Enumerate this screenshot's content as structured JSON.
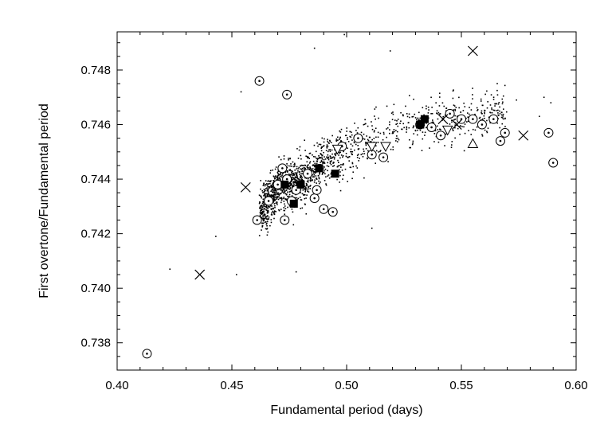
{
  "chart_data": {
    "type": "scatter",
    "title": "",
    "xlabel": "Fundamental period (days)",
    "ylabel": "First overtone/Fundamental period",
    "xlim": [
      0.4,
      0.6
    ],
    "ylim": [
      0.737,
      0.7494
    ],
    "xticks": [
      "0.40",
      "0.45",
      "0.50",
      "0.55",
      "0.60"
    ],
    "yticks": [
      "0.738",
      "0.740",
      "0.742",
      "0.744",
      "0.746",
      "0.748"
    ],
    "grid": false,
    "legend": "none",
    "background_field": {
      "marker": "dot",
      "color": "#000000",
      "approx_count": 1600,
      "trend_points": [
        [
          0.46,
          0.7425
        ],
        [
          0.47,
          0.7437
        ],
        [
          0.48,
          0.744
        ],
        [
          0.49,
          0.7446
        ],
        [
          0.5,
          0.745
        ],
        [
          0.51,
          0.7454
        ],
        [
          0.52,
          0.7457
        ],
        [
          0.53,
          0.746
        ],
        [
          0.54,
          0.7462
        ],
        [
          0.55,
          0.7463
        ],
        [
          0.56,
          0.7463
        ],
        [
          0.565,
          0.7465
        ]
      ],
      "outliers": [
        [
          0.423,
          0.7407
        ],
        [
          0.443,
          0.7419
        ],
        [
          0.452,
          0.7405
        ],
        [
          0.454,
          0.7472
        ],
        [
          0.478,
          0.7406
        ],
        [
          0.486,
          0.7488
        ],
        [
          0.499,
          0.7493
        ],
        [
          0.511,
          0.7422
        ],
        [
          0.519,
          0.7487
        ],
        [
          0.574,
          0.7469
        ],
        [
          0.584,
          0.7463
        ],
        [
          0.586,
          0.747
        ],
        [
          0.589,
          0.7468
        ]
      ]
    },
    "series": [
      {
        "marker": "circle-dot",
        "points": [
          [
            0.413,
            0.7376
          ],
          [
            0.462,
            0.7476
          ],
          [
            0.474,
            0.7471
          ],
          [
            0.461,
            0.7425
          ],
          [
            0.466,
            0.7432
          ],
          [
            0.47,
            0.7438
          ],
          [
            0.472,
            0.7444
          ],
          [
            0.474,
            0.744
          ],
          [
            0.476,
            0.7432
          ],
          [
            0.473,
            0.7425
          ],
          [
            0.478,
            0.7436
          ],
          [
            0.483,
            0.7442
          ],
          [
            0.486,
            0.7433
          ],
          [
            0.487,
            0.7436
          ],
          [
            0.49,
            0.7429
          ],
          [
            0.494,
            0.7428
          ],
          [
            0.498,
            0.7452
          ],
          [
            0.505,
            0.7455
          ],
          [
            0.511,
            0.7449
          ],
          [
            0.516,
            0.7448
          ],
          [
            0.532,
            0.746
          ],
          [
            0.537,
            0.7459
          ],
          [
            0.541,
            0.7456
          ],
          [
            0.545,
            0.7464
          ],
          [
            0.55,
            0.7462
          ],
          [
            0.555,
            0.7462
          ],
          [
            0.559,
            0.746
          ],
          [
            0.564,
            0.7462
          ],
          [
            0.567,
            0.7454
          ],
          [
            0.569,
            0.7457
          ],
          [
            0.588,
            0.7457
          ],
          [
            0.59,
            0.7446
          ]
        ]
      },
      {
        "marker": "square-filled",
        "points": [
          [
            0.473,
            0.7438
          ],
          [
            0.477,
            0.7431
          ],
          [
            0.48,
            0.7438
          ],
          [
            0.488,
            0.7444
          ],
          [
            0.495,
            0.7442
          ],
          [
            0.532,
            0.746
          ],
          [
            0.534,
            0.7462
          ]
        ]
      },
      {
        "marker": "cross",
        "points": [
          [
            0.436,
            0.7405
          ],
          [
            0.456,
            0.7437
          ],
          [
            0.542,
            0.7462
          ],
          [
            0.548,
            0.746
          ],
          [
            0.555,
            0.7487
          ],
          [
            0.577,
            0.7456
          ]
        ]
      },
      {
        "marker": "triangle-up",
        "points": [
          [
            0.555,
            0.7453
          ]
        ]
      },
      {
        "marker": "triangle-down",
        "points": [
          [
            0.496,
            0.7451
          ],
          [
            0.511,
            0.7452
          ],
          [
            0.517,
            0.7452
          ],
          [
            0.544,
            0.7458
          ]
        ]
      }
    ]
  }
}
